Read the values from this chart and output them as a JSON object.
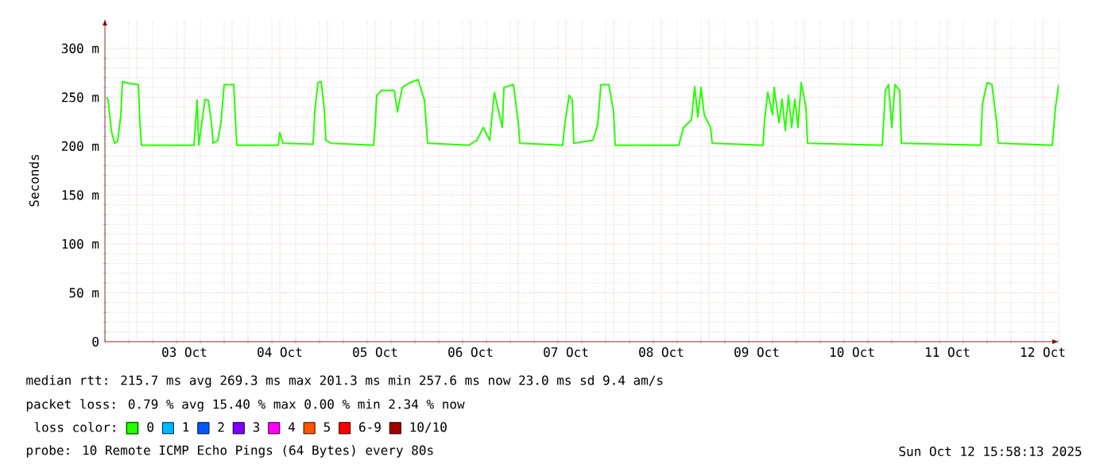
{
  "chart_data": {
    "type": "line",
    "ylabel": "Seconds",
    "legend_title": "loss color:",
    "x": [
      "2025-10-02T16:24",
      "2025-10-02T16:48",
      "2025-10-02T17:36",
      "2025-10-02T18:24",
      "2025-10-02T19:12",
      "2025-10-02T20:00",
      "2025-10-02T20:24",
      "2025-10-02T22:24",
      "2025-10-03T00:24",
      "2025-10-03T00:48",
      "2025-10-03T01:12",
      "2025-10-03T14:24",
      "2025-10-03T14:48",
      "2025-10-03T15:12",
      "2025-10-03T15:36",
      "2025-10-03T17:12",
      "2025-10-03T18:00",
      "2025-10-03T18:48",
      "2025-10-03T19:12",
      "2025-10-03T20:24",
      "2025-10-03T21:12",
      "2025-10-03T22:00",
      "2025-10-04T00:24",
      "2025-10-04T00:48",
      "2025-10-04T01:12",
      "2025-10-04T11:36",
      "2025-10-04T12:00",
      "2025-10-04T12:48",
      "2025-10-04T20:24",
      "2025-10-04T20:48",
      "2025-10-04T21:36",
      "2025-10-04T22:24",
      "2025-10-04T23:12",
      "2025-10-04T23:36",
      "2025-10-05T00:48",
      "2025-10-05T11:36",
      "2025-10-05T12:00",
      "2025-10-05T12:24",
      "2025-10-05T13:36",
      "2025-10-05T16:48",
      "2025-10-05T17:36",
      "2025-10-05T18:48",
      "2025-10-05T20:48",
      "2025-10-05T22:48",
      "2025-10-06T00:24",
      "2025-10-06T01:12",
      "2025-10-06T11:36",
      "2025-10-06T13:36",
      "2025-10-06T15:12",
      "2025-10-06T16:48",
      "2025-10-06T18:00",
      "2025-10-06T18:48",
      "2025-10-06T20:00",
      "2025-10-06T20:24",
      "2025-10-06T22:48",
      "2025-10-07T00:00",
      "2025-10-07T00:24",
      "2025-10-07T11:12",
      "2025-10-07T11:36",
      "2025-10-07T12:48",
      "2025-10-07T13:36",
      "2025-10-07T14:00",
      "2025-10-07T18:48",
      "2025-10-07T20:00",
      "2025-10-07T20:48",
      "2025-10-07T22:48",
      "2025-10-08T00:00",
      "2025-10-08T00:24",
      "2025-10-08T16:24",
      "2025-10-08T17:36",
      "2025-10-08T19:36",
      "2025-10-08T20:24",
      "2025-10-08T21:12",
      "2025-10-08T22:00",
      "2025-10-08T22:48",
      "2025-10-09T00:24",
      "2025-10-09T00:48",
      "2025-10-09T13:36",
      "2025-10-09T14:00",
      "2025-10-09T14:48",
      "2025-10-09T16:00",
      "2025-10-09T16:24",
      "2025-10-09T17:36",
      "2025-10-09T18:24",
      "2025-10-09T19:12",
      "2025-10-09T20:00",
      "2025-10-09T20:48",
      "2025-10-09T21:36",
      "2025-10-09T22:24",
      "2025-10-09T23:12",
      "2025-10-10T00:24",
      "2025-10-10T00:48",
      "2025-10-10T19:36",
      "2025-10-10T20:24",
      "2025-10-10T21:12",
      "2025-10-10T22:00",
      "2025-10-10T22:48",
      "2025-10-11T00:00",
      "2025-10-11T00:24",
      "2025-10-11T20:24",
      "2025-10-11T20:48",
      "2025-10-11T22:00",
      "2025-10-11T23:12",
      "2025-10-12T00:24",
      "2025-10-12T00:48",
      "2025-10-12T14:24",
      "2025-10-12T15:12",
      "2025-10-12T16:00"
    ],
    "series": [
      {
        "name": "0",
        "color": "#26ff00",
        "values": [
          250,
          247,
          216,
          203,
          205,
          232,
          266,
          264,
          263,
          224,
          201,
          201,
          224,
          247,
          201,
          248,
          247,
          224,
          203,
          206,
          224,
          263,
          263,
          230,
          201,
          201,
          214,
          203,
          202,
          235,
          265,
          266,
          238,
          206,
          203,
          201,
          222,
          252,
          257,
          257,
          235,
          260,
          265,
          268,
          247,
          203,
          201,
          206,
          219,
          206,
          255,
          240,
          219,
          260,
          263,
          224,
          203,
          201,
          219,
          252,
          247,
          203,
          206,
          222,
          263,
          263,
          235,
          201,
          201,
          219,
          227,
          261,
          230,
          260,
          232,
          219,
          203,
          201,
          227,
          255,
          232,
          260,
          224,
          248,
          216,
          252,
          219,
          248,
          219,
          265,
          240,
          203,
          201,
          257,
          263,
          219,
          263,
          257,
          203,
          201,
          243,
          265,
          263,
          224,
          203,
          201,
          240,
          263
        ]
      },
      {
        "name": "1",
        "color": "#00b8ff",
        "values": [
          null,
          null,
          null,
          null,
          null,
          null,
          null,
          null,
          null,
          null,
          null,
          null,
          null,
          null,
          null,
          null,
          null,
          null,
          null,
          null,
          null,
          null,
          null,
          null,
          null,
          null,
          null,
          null,
          null,
          null,
          null,
          null,
          null,
          null,
          null,
          null,
          null,
          null,
          null,
          null,
          null,
          null,
          null,
          null,
          null,
          null,
          null,
          null,
          null,
          null,
          null,
          null,
          null,
          null,
          null,
          null,
          null,
          null,
          null,
          null,
          null,
          null,
          null,
          null,
          null,
          null,
          null,
          null,
          null,
          null,
          null,
          null,
          null,
          null,
          null,
          null,
          null,
          null,
          null,
          null,
          null,
          null,
          null,
          null,
          null,
          null,
          null,
          null,
          null,
          null,
          null,
          null,
          null,
          null,
          null,
          null,
          null,
          null,
          null,
          null,
          null,
          null,
          null,
          null,
          null,
          null,
          null,
          null
        ]
      },
      {
        "name": "2",
        "color": "#0059ff",
        "values": [
          null,
          null,
          null,
          null,
          null,
          null,
          null,
          null,
          null,
          null,
          null,
          null,
          null,
          null,
          null,
          null,
          null,
          null,
          null,
          null,
          null,
          null,
          null,
          null,
          null,
          null,
          null,
          null,
          null,
          null,
          null,
          null,
          null,
          null,
          null,
          null,
          null,
          null,
          null,
          null,
          null,
          null,
          null,
          null,
          null,
          null,
          null,
          null,
          null,
          null,
          null,
          null,
          null,
          null,
          null,
          null,
          null,
          null,
          null,
          null,
          null,
          null,
          null,
          null,
          null,
          null,
          null,
          null,
          null,
          null,
          null,
          null,
          null,
          null,
          null,
          null,
          null,
          null,
          null,
          null,
          null,
          null,
          null,
          null,
          null,
          null,
          null,
          null,
          null,
          null,
          null,
          null,
          null,
          null,
          null,
          null,
          null,
          null,
          null,
          null,
          null,
          null,
          null,
          null,
          null,
          null,
          null,
          null
        ]
      },
      {
        "name": "3",
        "color": "#7e00ff",
        "values": [
          null,
          null,
          null,
          null,
          null,
          null,
          null,
          null,
          null,
          null,
          null,
          null,
          null,
          null,
          null,
          null,
          null,
          null,
          null,
          null,
          null,
          null,
          null,
          null,
          null,
          null,
          null,
          null,
          null,
          null,
          null,
          null,
          null,
          null,
          null,
          null,
          null,
          null,
          null,
          null,
          null,
          null,
          null,
          null,
          null,
          null,
          null,
          null,
          null,
          null,
          null,
          null,
          null,
          null,
          null,
          null,
          null,
          null,
          null,
          null,
          null,
          null,
          null,
          null,
          null,
          null,
          null,
          null,
          null,
          null,
          null,
          null,
          null,
          null,
          null,
          null,
          null,
          null,
          null,
          null,
          null,
          null,
          null,
          null,
          null,
          null,
          null,
          null,
          null,
          null,
          null,
          null,
          null,
          null,
          null,
          null,
          null,
          null,
          null,
          null,
          null,
          null,
          null,
          null,
          null,
          null,
          null,
          null
        ]
      },
      {
        "name": "4",
        "color": "#ff00ff",
        "values": [
          null,
          null,
          null,
          null,
          null,
          null,
          null,
          null,
          null,
          null,
          null,
          null,
          null,
          null,
          null,
          null,
          null,
          null,
          null,
          null,
          null,
          null,
          null,
          null,
          null,
          null,
          null,
          null,
          null,
          null,
          null,
          null,
          null,
          null,
          null,
          null,
          null,
          null,
          null,
          null,
          null,
          null,
          null,
          null,
          null,
          null,
          null,
          null,
          null,
          null,
          null,
          null,
          null,
          null,
          null,
          null,
          null,
          null,
          null,
          null,
          null,
          null,
          null,
          null,
          null,
          null,
          null,
          null,
          null,
          null,
          null,
          null,
          null,
          null,
          null,
          null,
          null,
          null,
          null,
          null,
          null,
          null,
          null,
          null,
          null,
          null,
          null,
          null,
          null,
          null,
          null,
          null,
          null,
          null,
          null,
          null,
          null,
          null,
          null,
          null,
          null,
          null,
          null,
          null,
          null,
          null,
          null,
          null
        ]
      },
      {
        "name": "5",
        "color": "#ff5500",
        "values": [
          null,
          null,
          null,
          null,
          null,
          null,
          null,
          null,
          null,
          null,
          null,
          null,
          null,
          null,
          null,
          null,
          null,
          null,
          null,
          null,
          null,
          null,
          null,
          null,
          null,
          null,
          null,
          null,
          null,
          null,
          null,
          null,
          null,
          null,
          null,
          null,
          null,
          null,
          null,
          null,
          null,
          null,
          null,
          null,
          null,
          null,
          null,
          null,
          null,
          null,
          null,
          null,
          null,
          null,
          null,
          null,
          null,
          null,
          null,
          null,
          null,
          null,
          null,
          null,
          null,
          null,
          null,
          null,
          null,
          null,
          null,
          null,
          null,
          null,
          null,
          null,
          null,
          null,
          null,
          null,
          null,
          null,
          null,
          null,
          null,
          null,
          null,
          null,
          null,
          null,
          null,
          null,
          null,
          null,
          null,
          null,
          null,
          null,
          null,
          null,
          null,
          null,
          null,
          null,
          null,
          null,
          null,
          null
        ]
      },
      {
        "name": "6-9",
        "color": "#ff0000",
        "values": [
          null,
          null,
          null,
          null,
          null,
          null,
          null,
          null,
          null,
          null,
          null,
          null,
          null,
          null,
          null,
          null,
          null,
          null,
          null,
          null,
          null,
          null,
          null,
          null,
          null,
          null,
          null,
          null,
          null,
          null,
          null,
          null,
          null,
          null,
          null,
          null,
          null,
          null,
          null,
          null,
          null,
          null,
          null,
          null,
          null,
          null,
          null,
          null,
          null,
          null,
          null,
          null,
          null,
          null,
          null,
          null,
          null,
          null,
          null,
          null,
          null,
          null,
          null,
          null,
          null,
          null,
          null,
          null,
          null,
          null,
          null,
          null,
          null,
          null,
          null,
          null,
          null,
          null,
          null,
          null,
          null,
          null,
          null,
          null,
          null,
          null,
          null,
          null,
          null,
          null,
          null,
          null,
          null,
          null,
          null,
          null,
          null,
          null,
          null,
          null,
          null,
          null,
          null,
          null,
          null,
          null,
          null,
          null
        ]
      },
      {
        "name": "10/10",
        "color": "#a10000",
        "values": [
          null,
          null,
          null,
          null,
          null,
          null,
          null,
          null,
          null,
          null,
          null,
          null,
          null,
          null,
          null,
          null,
          null,
          null,
          null,
          null,
          null,
          null,
          null,
          null,
          null,
          null,
          null,
          null,
          null,
          null,
          null,
          null,
          null,
          null,
          null,
          null,
          null,
          null,
          null,
          null,
          null,
          null,
          null,
          null,
          null,
          null,
          null,
          null,
          null,
          null,
          null,
          null,
          null,
          null,
          null,
          null,
          null,
          null,
          null,
          null,
          null,
          null,
          null,
          null,
          null,
          null,
          null,
          null,
          null,
          null,
          null,
          null,
          null,
          null,
          null,
          null,
          null,
          null,
          null,
          null,
          null,
          null,
          null,
          null,
          null,
          null,
          null,
          null,
          null,
          null,
          null,
          null,
          null,
          null,
          null,
          null,
          null,
          null,
          null,
          null,
          null,
          null,
          null,
          null,
          null,
          null,
          null,
          null
        ]
      }
    ],
    "xlim": [
      "2025-10-02T16:00",
      "2025-10-12T16:00"
    ],
    "xticks": [
      {
        "value": "2025-10-03T00:00",
        "label": null
      },
      {
        "value": "2025-10-03T12:00",
        "label": "03 Oct"
      },
      {
        "value": "2025-10-04T00:00",
        "label": null
      },
      {
        "value": "2025-10-04T12:00",
        "label": "04 Oct"
      },
      {
        "value": "2025-10-05T00:00",
        "label": null
      },
      {
        "value": "2025-10-05T12:00",
        "label": "05 Oct"
      },
      {
        "value": "2025-10-06T00:00",
        "label": null
      },
      {
        "value": "2025-10-06T12:00",
        "label": "06 Oct"
      },
      {
        "value": "2025-10-07T00:00",
        "label": null
      },
      {
        "value": "2025-10-07T12:00",
        "label": "07 Oct"
      },
      {
        "value": "2025-10-08T00:00",
        "label": null
      },
      {
        "value": "2025-10-08T12:00",
        "label": "08 Oct"
      },
      {
        "value": "2025-10-09T00:00",
        "label": null
      },
      {
        "value": "2025-10-09T12:00",
        "label": "09 Oct"
      },
      {
        "value": "2025-10-10T00:00",
        "label": null
      },
      {
        "value": "2025-10-10T12:00",
        "label": "10 Oct"
      },
      {
        "value": "2025-10-11T00:00",
        "label": null
      },
      {
        "value": "2025-10-11T12:00",
        "label": "11 Oct"
      },
      {
        "value": "2025-10-12T00:00",
        "label": null
      },
      {
        "value": "2025-10-12T12:00",
        "label": "12 Oct"
      }
    ],
    "ylim": [
      0,
      330
    ],
    "yticks": [
      {
        "value": 0,
        "label": "0"
      },
      {
        "value": 50,
        "label": "50 m"
      },
      {
        "value": 100,
        "label": "100 m"
      },
      {
        "value": 150,
        "label": "150 m"
      },
      {
        "value": 200,
        "label": "200 m"
      },
      {
        "value": 250,
        "label": "250 m"
      },
      {
        "value": 300,
        "label": "300 m"
      }
    ],
    "grid": true,
    "legend": "bottom",
    "marker": "none",
    "line_style": "solid",
    "annotations": [
      "median rtt:  215.7 ms avg  269.3 ms max  201.3 ms min  257.6 ms now  23.0 ms sd  9.4   am/s",
      "packet loss: 0.79 % avg  15.40 % max  0.00 % min  2.34 % now",
      "probe:       10 Remote ICMP Echo Pings (64 Bytes) every 80s",
      "Sun Oct 12 15:58:13 2025"
    ]
  }
}
